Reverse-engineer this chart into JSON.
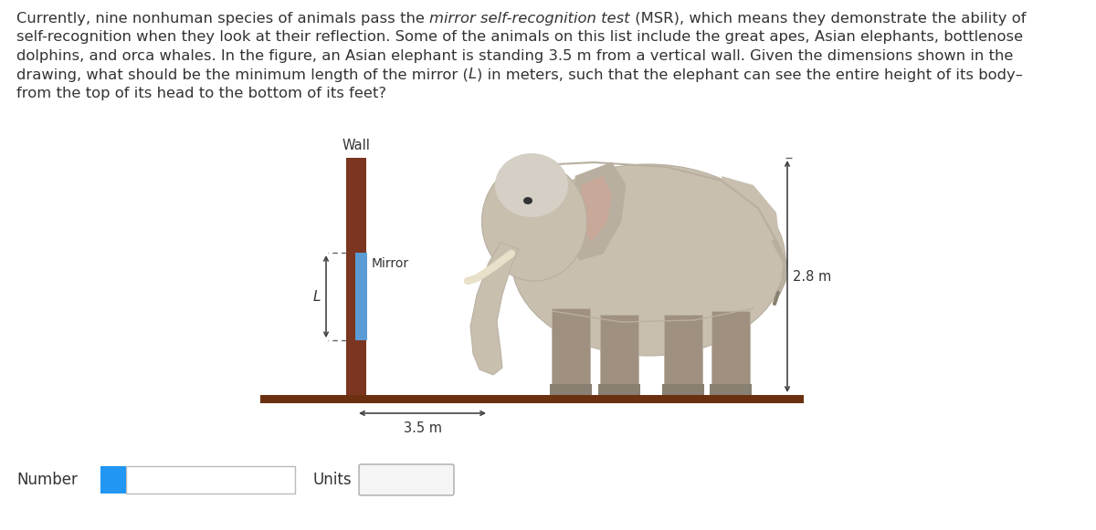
{
  "bg_color": "#ffffff",
  "text_color": "#333333",
  "wall_color": "#7B3520",
  "mirror_color": "#5B9BD5",
  "floor_color": "#6B3010",
  "dashed_line_color": "#666666",
  "arrow_color": "#444444",
  "wall_label": "Wall",
  "mirror_label": "Mirror",
  "L_label": "L",
  "dist_label": "3.5 m",
  "height_label": "2.8 m",
  "number_label": "Number",
  "units_label": "Units",
  "info_box_color": "#2196F3",
  "input_box_color": "#ffffff",
  "input_box_border": "#bbbbbb",
  "units_box_color": "#f0f0f0",
  "font_size_text": 11.8,
  "font_size_labels": 10.5,
  "font_size_ui": 12,
  "paragraph_lines": [
    [
      {
        "text": "Currently, nine nonhuman species of animals pass the ",
        "italic": false
      },
      {
        "text": "mirror self-recognition test",
        "italic": true
      },
      {
        "text": " (MSR), which means they demonstrate the ability of",
        "italic": false
      }
    ],
    [
      {
        "text": "self-recognition when they look at their reflection. Some of the animals on this list include the great apes, Asian elephants, bottlenose",
        "italic": false
      }
    ],
    [
      {
        "text": "dolphins, and orca whales. In the figure, an Asian elephant is standing 3.5 m from a vertical wall. Given the dimensions shown in the",
        "italic": false
      }
    ],
    [
      {
        "text": "drawing, what should be the minimum length of the mirror (",
        "italic": false
      },
      {
        "text": "L",
        "italic": true
      },
      {
        "text": ") in meters, such that the elephant can see the entire height of its body–",
        "italic": false
      }
    ],
    [
      {
        "text": "from the top of its head to the bottom of its feet?",
        "italic": false
      }
    ]
  ]
}
